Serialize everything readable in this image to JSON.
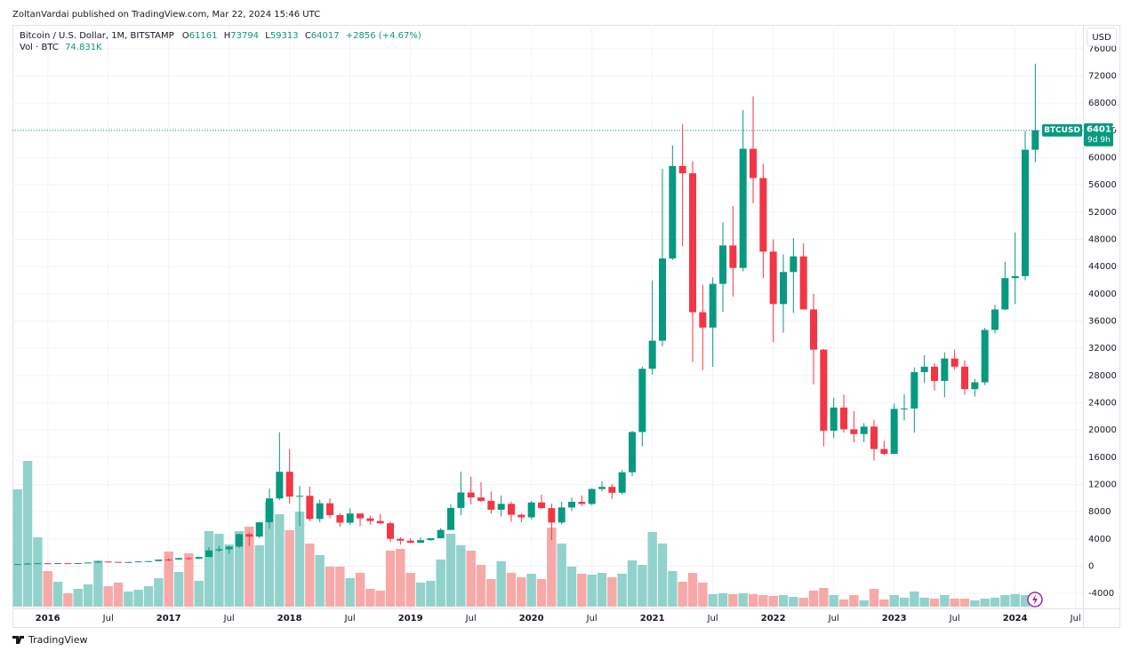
{
  "header": {
    "publisher": "ZoltanVardai published on TradingView.com, Mar 22, 2024 15:46 UTC",
    "brand": "TradingView",
    "currency_button": "USD"
  },
  "chart_data": {
    "type": "candlestick",
    "title": "Bitcoin / U.S. Dollar, 1M, BITSTAMP",
    "ohlc_labels": [
      "O",
      "H",
      "L",
      "C"
    ],
    "change_label": "+2856 (+4.67%)",
    "last_price_tag": {
      "symbol": "BTCUSD",
      "countdown": "9d 9h"
    },
    "up_color": "#089981",
    "down_color": "#f23645",
    "x": [
      "2015-10",
      "2015-11",
      "2015-12",
      "2016-01",
      "2016-02",
      "2016-03",
      "2016-04",
      "2016-05",
      "2016-06",
      "2016-07",
      "2016-08",
      "2016-09",
      "2016-10",
      "2016-11",
      "2016-12",
      "2017-01",
      "2017-02",
      "2017-03",
      "2017-04",
      "2017-05",
      "2017-06",
      "2017-07",
      "2017-08",
      "2017-09",
      "2017-10",
      "2017-11",
      "2017-12",
      "2018-01",
      "2018-02",
      "2018-03",
      "2018-04",
      "2018-05",
      "2018-06",
      "2018-07",
      "2018-08",
      "2018-09",
      "2018-10",
      "2018-11",
      "2018-12",
      "2019-01",
      "2019-02",
      "2019-03",
      "2019-04",
      "2019-05",
      "2019-06",
      "2019-07",
      "2019-08",
      "2019-09",
      "2019-10",
      "2019-11",
      "2019-12",
      "2020-01",
      "2020-02",
      "2020-03",
      "2020-04",
      "2020-05",
      "2020-06",
      "2020-07",
      "2020-08",
      "2020-09",
      "2020-10",
      "2020-11",
      "2020-12",
      "2021-01",
      "2021-02",
      "2021-03",
      "2021-04",
      "2021-05",
      "2021-06",
      "2021-07",
      "2021-08",
      "2021-09",
      "2021-10",
      "2021-11",
      "2021-12",
      "2022-01",
      "2022-02",
      "2022-03",
      "2022-04",
      "2022-05",
      "2022-06",
      "2022-07",
      "2022-08",
      "2022-09",
      "2022-10",
      "2022-11",
      "2022-12",
      "2023-01",
      "2023-02",
      "2023-03",
      "2023-04",
      "2023-05",
      "2023-06",
      "2023-07",
      "2023-08",
      "2023-09",
      "2023-10",
      "2023-11",
      "2023-12",
      "2024-01",
      "2024-02",
      "2024-03"
    ],
    "open": [
      236,
      314,
      377,
      430,
      368,
      437,
      416,
      448,
      530,
      673,
      624,
      573,
      609,
      700,
      742,
      966,
      965,
      1190,
      1080,
      1350,
      2300,
      2480,
      2870,
      4700,
      4340,
      6440,
      9950,
      13860,
      10220,
      10330,
      6930,
      9240,
      7500,
      6390,
      7730,
      7020,
      6630,
      6300,
      4020,
      3740,
      3440,
      3820,
      4100,
      5320,
      8550,
      10820,
      10090,
      9590,
      8290,
      9150,
      7550,
      7170,
      9350,
      8520,
      6410,
      8620,
      9450,
      9140,
      11330,
      11640,
      10780,
      13790,
      19700,
      28990,
      33110,
      45190,
      58770,
      57700,
      37300,
      35040,
      41460,
      47100,
      43800,
      61300,
      57000,
      46200,
      38500,
      43200,
      45500,
      37700,
      31800,
      19900,
      23300,
      20100,
      19400,
      20500,
      17200,
      16500,
      23100,
      23150,
      28500,
      29300,
      27200,
      30500,
      29300,
      26000,
      27000,
      34700,
      37700,
      42300,
      42600,
      61161
    ],
    "high": [
      316,
      495,
      465,
      462,
      446,
      440,
      468,
      550,
      780,
      705,
      625,
      625,
      725,
      755,
      975,
      1150,
      1210,
      1290,
      1390,
      2770,
      3000,
      2930,
      4750,
      4980,
      6470,
      11400,
      19670,
      17200,
      11780,
      11700,
      9760,
      9990,
      7780,
      8500,
      7750,
      7410,
      7680,
      6540,
      4230,
      4080,
      4200,
      4140,
      5600,
      9090,
      13880,
      13130,
      12330,
      10940,
      10370,
      9500,
      7750,
      9580,
      10500,
      9190,
      9470,
      10080,
      10380,
      11440,
      12470,
      12070,
      14100,
      19870,
      29300,
      41950,
      58350,
      61780,
      64900,
      59500,
      41300,
      42400,
      50500,
      52900,
      67000,
      69000,
      59100,
      47990,
      45800,
      48200,
      47400,
      40000,
      31900,
      24700,
      25200,
      22800,
      21000,
      21500,
      18400,
      23900,
      25250,
      29200,
      31000,
      29800,
      31400,
      31800,
      30200,
      27500,
      35000,
      38400,
      44700,
      49000,
      63900,
      73794
    ],
    "low": [
      236,
      300,
      350,
      350,
      365,
      396,
      414,
      436,
      525,
      605,
      480,
      570,
      605,
      685,
      740,
      750,
      910,
      890,
      1060,
      1340,
      2100,
      1830,
      2670,
      2970,
      4120,
      5500,
      9700,
      9200,
      5920,
      6600,
      6450,
      7050,
      5780,
      6070,
      5880,
      6110,
      6200,
      3560,
      3150,
      3350,
      3390,
      3760,
      4080,
      5320,
      7500,
      9070,
      9400,
      7700,
      7300,
      6520,
      6430,
      6870,
      8450,
      3850,
      6150,
      8120,
      8830,
      8950,
      10980,
      9880,
      10530,
      13200,
      17580,
      28130,
      32300,
      44950,
      47000,
      30000,
      28800,
      29280,
      37330,
      39600,
      43300,
      53300,
      42300,
      32900,
      34300,
      37200,
      37700,
      26700,
      17600,
      18800,
      19600,
      18200,
      18200,
      15500,
      16300,
      16500,
      21400,
      19600,
      26900,
      25800,
      24800,
      28900,
      25200,
      24900,
      26600,
      34200,
      37600,
      38500,
      42000,
      59313
    ],
    "close": [
      314,
      377,
      430,
      368,
      437,
      416,
      448,
      530,
      673,
      624,
      573,
      609,
      700,
      742,
      966,
      965,
      1190,
      1080,
      1350,
      2300,
      2480,
      2870,
      4700,
      4340,
      6440,
      9950,
      13860,
      10220,
      10330,
      6930,
      9240,
      7500,
      6390,
      7730,
      7020,
      6630,
      6300,
      4020,
      3740,
      3440,
      3820,
      4100,
      5320,
      8550,
      10820,
      10090,
      9590,
      8290,
      9150,
      7550,
      7170,
      9350,
      8520,
      6410,
      8620,
      9450,
      9140,
      11330,
      11640,
      10780,
      13790,
      19700,
      28990,
      33110,
      45190,
      58770,
      57700,
      37300,
      35040,
      41460,
      47100,
      43800,
      61300,
      57000,
      46200,
      38500,
      43200,
      45500,
      37700,
      31800,
      19900,
      23300,
      20100,
      19400,
      20500,
      17200,
      16500,
      23100,
      23150,
      28500,
      29300,
      27200,
      30500,
      29300,
      26000,
      27000,
      34700,
      37700,
      42300,
      42600,
      61161,
      64017
    ],
    "volume": {
      "name": "Vol · BTC",
      "last_label": "74.831K",
      "up_color": "#92d2cc",
      "down_color": "#f7a9a7",
      "values": [
        660000,
        820000,
        390000,
        200000,
        140000,
        75000,
        100000,
        125000,
        260000,
        115000,
        135000,
        85000,
        95000,
        115000,
        160000,
        310000,
        195000,
        300000,
        145000,
        425000,
        410000,
        350000,
        425000,
        450000,
        345000,
        590000,
        520000,
        430000,
        535000,
        355000,
        290000,
        225000,
        225000,
        160000,
        190000,
        100000,
        90000,
        315000,
        325000,
        190000,
        135000,
        145000,
        265000,
        410000,
        345000,
        315000,
        235000,
        155000,
        255000,
        190000,
        165000,
        185000,
        155000,
        445000,
        355000,
        225000,
        185000,
        180000,
        190000,
        165000,
        185000,
        260000,
        235000,
        420000,
        355000,
        200000,
        140000,
        190000,
        135000,
        70000,
        75000,
        70000,
        75000,
        70000,
        65000,
        60000,
        65000,
        55000,
        50000,
        90000,
        105000,
        65000,
        40000,
        65000,
        35000,
        100000,
        40000,
        65000,
        50000,
        85000,
        50000,
        45000,
        65000,
        45000,
        45000,
        35000,
        45000,
        50000,
        65000,
        70000,
        65000,
        74831
      ]
    },
    "ylim": [
      -6200,
      79500
    ],
    "yticks": [
      76000,
      72000,
      68000,
      64000,
      60000,
      56000,
      52000,
      48000,
      44000,
      40000,
      36000,
      32000,
      28000,
      24000,
      20000,
      16000,
      12000,
      8000,
      4000,
      0,
      -4000
    ],
    "xticks": [
      {
        "value": "2016-01",
        "label": "2016"
      },
      {
        "value": "2016-07",
        "label": "Jul"
      },
      {
        "value": "2017-01",
        "label": "2017"
      },
      {
        "value": "2017-07",
        "label": "Jul"
      },
      {
        "value": "2018-01",
        "label": "2018"
      },
      {
        "value": "2018-07",
        "label": "Jul"
      },
      {
        "value": "2019-01",
        "label": "2019"
      },
      {
        "value": "2019-07",
        "label": "Jul"
      },
      {
        "value": "2020-01",
        "label": "2020"
      },
      {
        "value": "2020-07",
        "label": "Jul"
      },
      {
        "value": "2021-01",
        "label": "2021"
      },
      {
        "value": "2021-07",
        "label": "Jul"
      },
      {
        "value": "2022-01",
        "label": "2022"
      },
      {
        "value": "2022-07",
        "label": "Jul"
      },
      {
        "value": "2023-01",
        "label": "2023"
      },
      {
        "value": "2023-07",
        "label": "Jul"
      },
      {
        "value": "2024-01",
        "label": "2024"
      },
      {
        "value": "2024-07",
        "label": "Jul"
      }
    ],
    "grid": true
  }
}
